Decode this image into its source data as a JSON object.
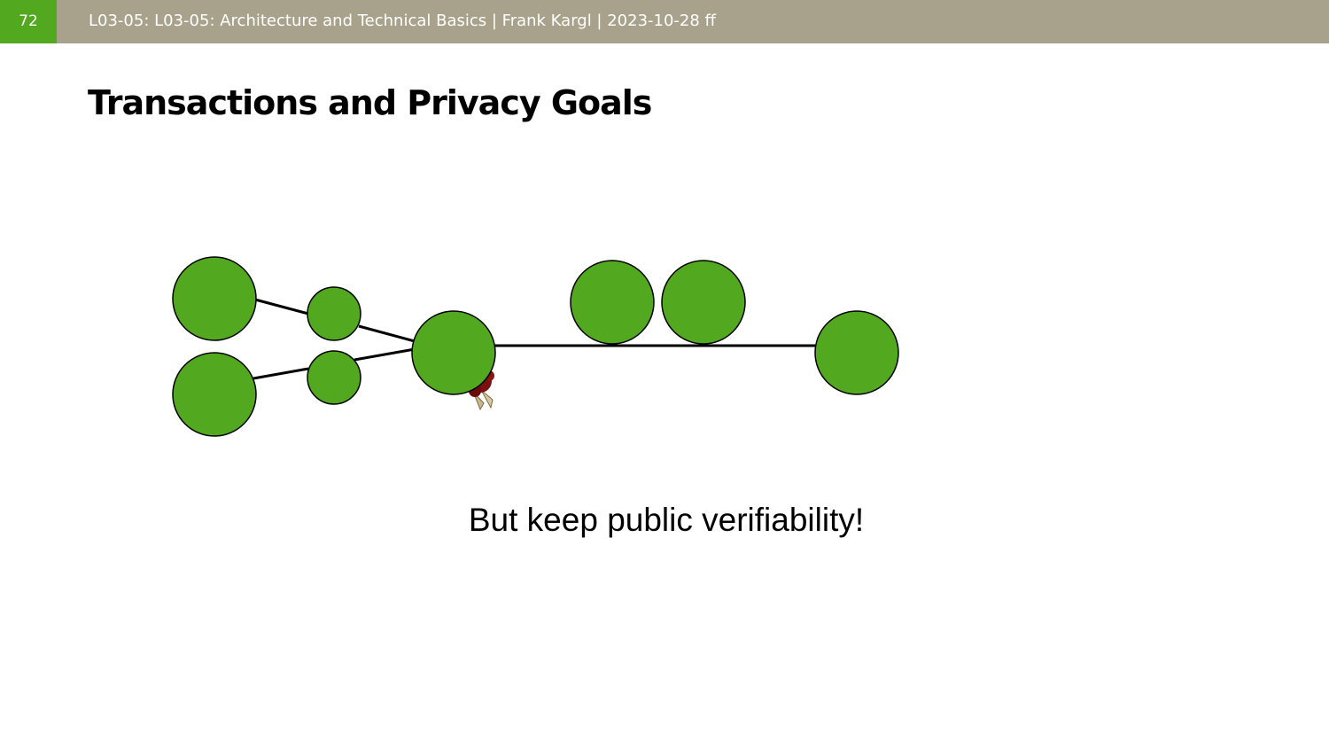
{
  "header": {
    "slide_number": "72",
    "text": "L03-05: L03-05: Architecture and Technical Basics | Frank Kargl | 2023-10-28 ff"
  },
  "slide": {
    "title": "Transactions and Privacy Goals",
    "caption": "But keep public verifiability!"
  },
  "colors": {
    "header_bg": "#a8a18b",
    "accent": "#52a81f",
    "node_fill": "#52a81f",
    "seal": "#7a1010"
  },
  "diagram": {
    "nodes": [
      "node-a",
      "node-b",
      "node-c",
      "node-d",
      "node-e",
      "node-f",
      "node-g",
      "node-h"
    ],
    "icons": [
      "wax-seal-icon"
    ]
  }
}
